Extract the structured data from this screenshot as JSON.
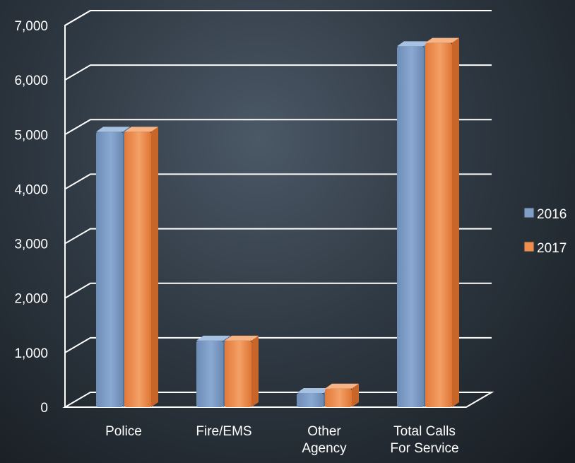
{
  "chart_data": {
    "type": "bar",
    "categories": [
      [
        "Police"
      ],
      [
        "Fire/EMS"
      ],
      [
        "Other",
        "Agency"
      ],
      [
        "Total Calls",
        "For Service"
      ]
    ],
    "series": [
      {
        "name": "2016",
        "values": [
          5050,
          1220,
          260,
          6620
        ]
      },
      {
        "name": "2017",
        "values": [
          5050,
          1220,
          340,
          6680
        ]
      }
    ],
    "colors": [
      "#7f9fc9",
      "#ef8f4f"
    ],
    "ylim": [
      0,
      7000
    ],
    "yticks": [
      "0",
      "1,000",
      "2,000",
      "3,000",
      "4,000",
      "5,000",
      "6,000",
      "7,000"
    ],
    "grid": true,
    "legend_position": "right"
  }
}
